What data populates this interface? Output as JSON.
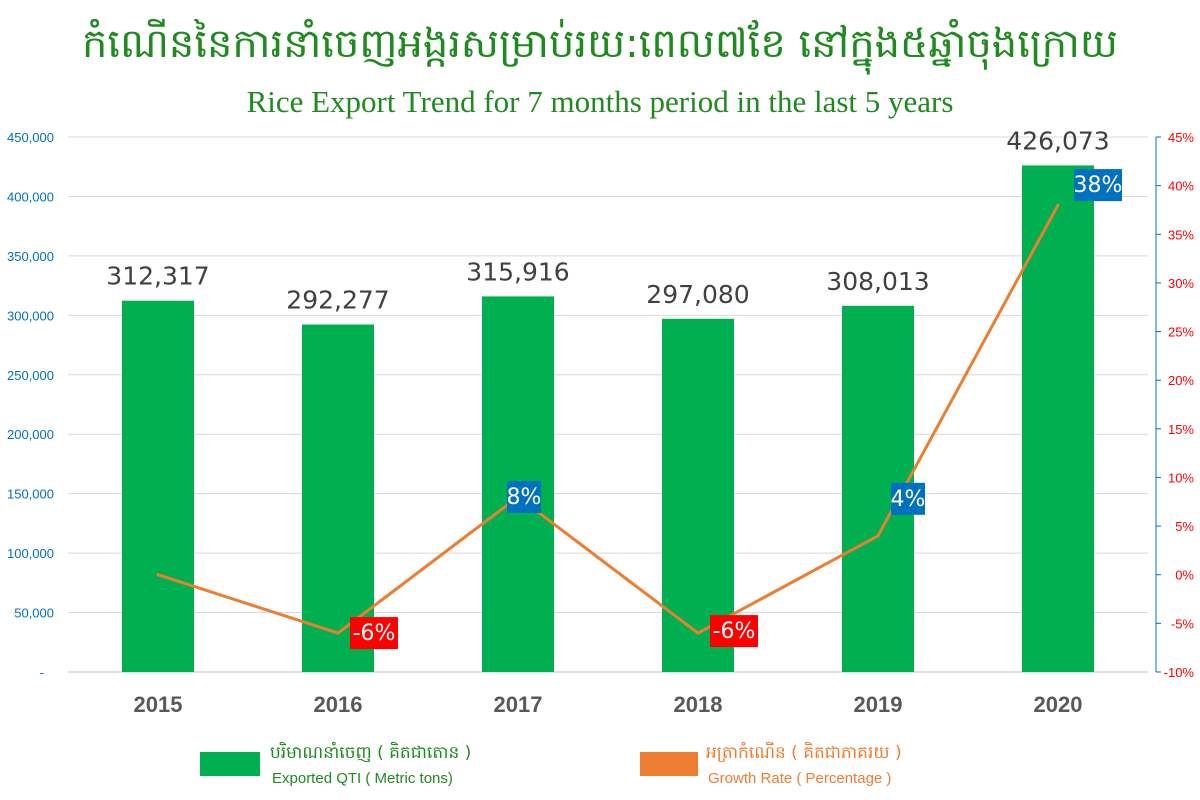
{
  "title_kh": "កំណើននៃការនាំចេញអង្ករសម្រាប់រយ:ពេល៧ខែ នៅក្នុង៥ឆ្នាំចុងក្រោយ",
  "title_en": "Rice Export Trend for 7 months period in the last 5 years",
  "colors": {
    "bar": "#00b050",
    "line": "#ed7d31",
    "positive_label": "#0070c0",
    "negative_label": "#ff0000",
    "title": "#1f8a1f",
    "left_axis": "#0070c0",
    "right_axis": "#ff0000"
  },
  "chart_data": {
    "type": "bar",
    "categories": [
      "2015",
      "2016",
      "2017",
      "2018",
      "2019",
      "2020"
    ],
    "series": [
      {
        "name": "Exported QTI ( Metric tons)",
        "type": "bar",
        "axis": "left",
        "values": [
          312317,
          292277,
          315916,
          297080,
          308013,
          426073
        ],
        "labels": [
          "312,317",
          "292,277",
          "315,916",
          "297,080",
          "308,013",
          "426,073"
        ]
      },
      {
        "name": "Growth Rate ( Percentage )",
        "type": "line",
        "axis": "right",
        "values": [
          0,
          -6,
          8,
          -6,
          4,
          38
        ],
        "labels": [
          "",
          "-6%",
          "8%",
          "-6%",
          "4%",
          "38%"
        ]
      }
    ],
    "y_left": {
      "min": 0,
      "max": 450000,
      "ticks": [
        "-",
        "50,000",
        "100,000",
        "150,000",
        "200,000",
        "250,000",
        "300,000",
        "350,000",
        "400,000",
        "450,000"
      ]
    },
    "y_right": {
      "min": -10,
      "max": 45,
      "ticks": [
        "-10%",
        "-5%",
        "0%",
        "5%",
        "10%",
        "15%",
        "20%",
        "25%",
        "30%",
        "35%",
        "40%",
        "45%"
      ]
    },
    "grid": true,
    "legend_position": "bottom"
  },
  "legend": [
    {
      "kh": "បរិមាណនាំចេញ ( គិតជាតោន )",
      "en": "Exported QTI ( Metric tons)"
    },
    {
      "kh": "អត្រាកំណើន ( គិតជាភាគរយ )",
      "en": "Growth Rate ( Percentage )"
    }
  ]
}
